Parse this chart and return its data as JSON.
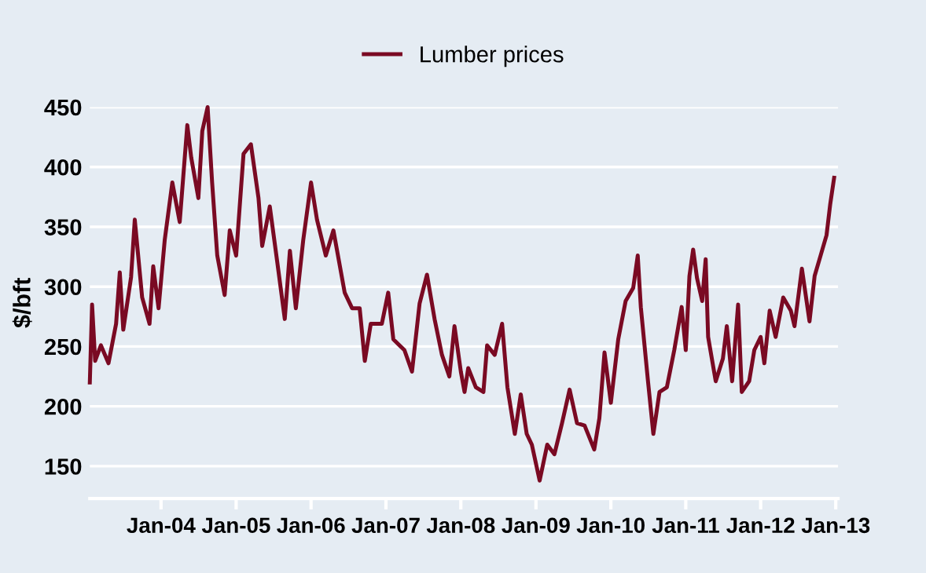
{
  "chart_data": {
    "type": "line",
    "ylabel": "$/bft",
    "legend": "top",
    "grid": "y",
    "line_style": "solid",
    "marker": "none",
    "xlim": [
      "2003-01-19",
      "2013-01-12"
    ],
    "ylim": [
      123,
      450
    ],
    "yticks": [
      150,
      200,
      250,
      300,
      350,
      400,
      450
    ],
    "xticks": [
      {
        "value": "2004-01-01",
        "label": "Jan-04"
      },
      {
        "value": "2005-01-01",
        "label": "Jan-05"
      },
      {
        "value": "2006-01-01",
        "label": "Jan-06"
      },
      {
        "value": "2007-01-01",
        "label": "Jan-07"
      },
      {
        "value": "2008-01-01",
        "label": "Jan-08"
      },
      {
        "value": "2009-01-01",
        "label": "Jan-09"
      },
      {
        "value": "2010-01-01",
        "label": "Jan-10"
      },
      {
        "value": "2011-01-01",
        "label": "Jan-11"
      },
      {
        "value": "2012-01-01",
        "label": "Jan-12"
      },
      {
        "value": "2013-01-01",
        "label": "Jan-13"
      }
    ],
    "series": [
      {
        "name": "Lumber prices",
        "color": "#7a0a23",
        "x": [
          "2003-01-19",
          "2003-01-30",
          "2003-02-14",
          "2003-03-14",
          "2003-04-20",
          "2003-05-27",
          "2003-06-14",
          "2003-07-01",
          "2003-08-08",
          "2003-08-26",
          "2003-10-01",
          "2003-11-06",
          "2003-11-24",
          "2003-12-20",
          "2004-01-19",
          "2004-02-25",
          "2004-04-01",
          "2004-05-08",
          "2004-05-27",
          "2004-07-01",
          "2004-07-20",
          "2004-08-15",
          "2004-09-06",
          "2004-10-01",
          "2004-11-06",
          "2004-12-01",
          "2005-01-01",
          "2005-02-06",
          "2005-03-14",
          "2005-04-20",
          "2005-05-08",
          "2005-06-14",
          "2005-07-20",
          "2005-08-26",
          "2005-09-20",
          "2005-10-19",
          "2005-11-24",
          "2006-01-01",
          "2006-01-30",
          "2006-03-14",
          "2006-04-20",
          "2006-06-14",
          "2006-07-20",
          "2006-08-26",
          "2006-09-20",
          "2006-10-19",
          "2006-12-12",
          "2007-01-12",
          "2007-02-06",
          "2007-04-01",
          "2007-05-08",
          "2007-06-14",
          "2007-07-20",
          "2007-08-26",
          "2007-10-01",
          "2007-11-06",
          "2007-12-01",
          "2008-01-01",
          "2008-01-19",
          "2008-02-06",
          "2008-03-14",
          "2008-04-20",
          "2008-05-08",
          "2008-06-14",
          "2008-07-20",
          "2008-08-15",
          "2008-09-20",
          "2008-10-19",
          "2008-11-17",
          "2008-12-12",
          "2009-01-19",
          "2009-02-25",
          "2009-04-01",
          "2009-05-08",
          "2009-06-14",
          "2009-07-20",
          "2009-08-26",
          "2009-10-12",
          "2009-11-06",
          "2009-12-01",
          "2010-01-01",
          "2010-02-06",
          "2010-03-14",
          "2010-04-20",
          "2010-05-12",
          "2010-05-27",
          "2010-07-01",
          "2010-07-27",
          "2010-08-26",
          "2010-10-01",
          "2010-11-06",
          "2010-12-12",
          "2011-01-01",
          "2011-01-19",
          "2011-02-06",
          "2011-02-25",
          "2011-03-22",
          "2011-04-08",
          "2011-04-20",
          "2011-05-27",
          "2011-07-01",
          "2011-07-20",
          "2011-08-15",
          "2011-09-13",
          "2011-10-01",
          "2011-11-06",
          "2011-12-01",
          "2012-01-01",
          "2012-01-19",
          "2012-02-14",
          "2012-03-14",
          "2012-04-20",
          "2012-05-27",
          "2012-06-14",
          "2012-07-20",
          "2012-08-26",
          "2012-09-20",
          "2012-10-19",
          "2012-11-17",
          "2012-12-05",
          "2012-12-24"
        ],
        "values": [
          220,
          285,
          238,
          251,
          236,
          269,
          312,
          264,
          308,
          356,
          291,
          269,
          317,
          282,
          339,
          387,
          354,
          435,
          408,
          374,
          430,
          450,
          387,
          326,
          293,
          347,
          326,
          411,
          419,
          374,
          334,
          367,
          321,
          273,
          330,
          282,
          339,
          387,
          356,
          326,
          347,
          295,
          282,
          282,
          238,
          269,
          269,
          295,
          256,
          247,
          229,
          286,
          310,
          273,
          243,
          225,
          267,
          229,
          212,
          232,
          216,
          212,
          251,
          243,
          269,
          216,
          177,
          210,
          177,
          168,
          138,
          168,
          160,
          186,
          214,
          186,
          184,
          164,
          190,
          245,
          203,
          256,
          288,
          299,
          326,
          283,
          221,
          177,
          212,
          216,
          247,
          283,
          247,
          309,
          331,
          307,
          288,
          323,
          258,
          221,
          240,
          267,
          221,
          285,
          212,
          221,
          247,
          258,
          236,
          280,
          258,
          291,
          280,
          267,
          315,
          271,
          309,
          326,
          343,
          369,
          391
        ]
      }
    ]
  }
}
